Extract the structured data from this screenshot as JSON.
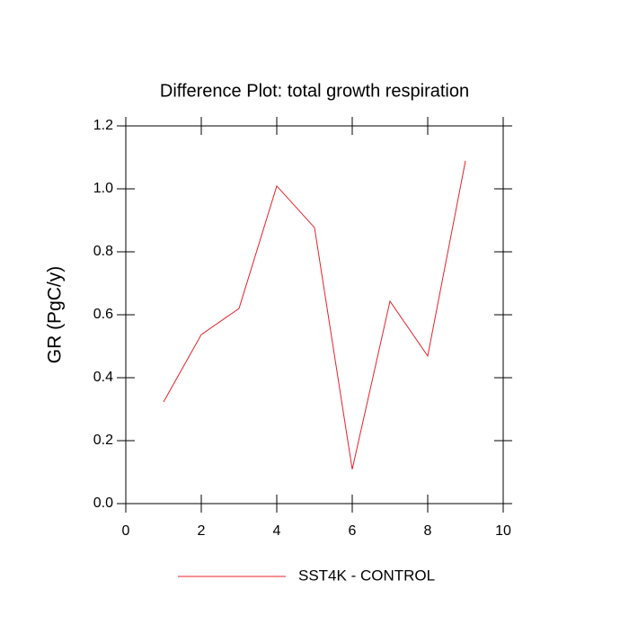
{
  "chart_data": {
    "type": "line",
    "title": "Difference Plot: total growth respiration",
    "y_label": "GR  (PgC/y)",
    "x": [
      1,
      2,
      3,
      4,
      5,
      6,
      7,
      8,
      9
    ],
    "series": [
      {
        "name": "SST4K - CONTROL",
        "color": "#e8202a",
        "values": [
          0.323,
          0.537,
          0.62,
          1.009,
          0.877,
          0.109,
          0.643,
          0.469,
          1.089
        ]
      }
    ],
    "xlim": [
      0,
      10
    ],
    "xticks": [
      0,
      2,
      4,
      6,
      8,
      10
    ],
    "ylim": [
      0,
      1.2
    ],
    "yticks": [
      {
        "value": 0,
        "label": "0.0"
      },
      {
        "value": 0.2,
        "label": "0.2"
      },
      {
        "value": 0.4,
        "label": "0.4"
      },
      {
        "value": 0.6,
        "label": "0.6"
      },
      {
        "value": 0.8,
        "label": "0.8"
      },
      {
        "value": 1,
        "label": "1.0"
      },
      {
        "value": 1.2,
        "label": "1.2"
      }
    ],
    "grid": false
  }
}
